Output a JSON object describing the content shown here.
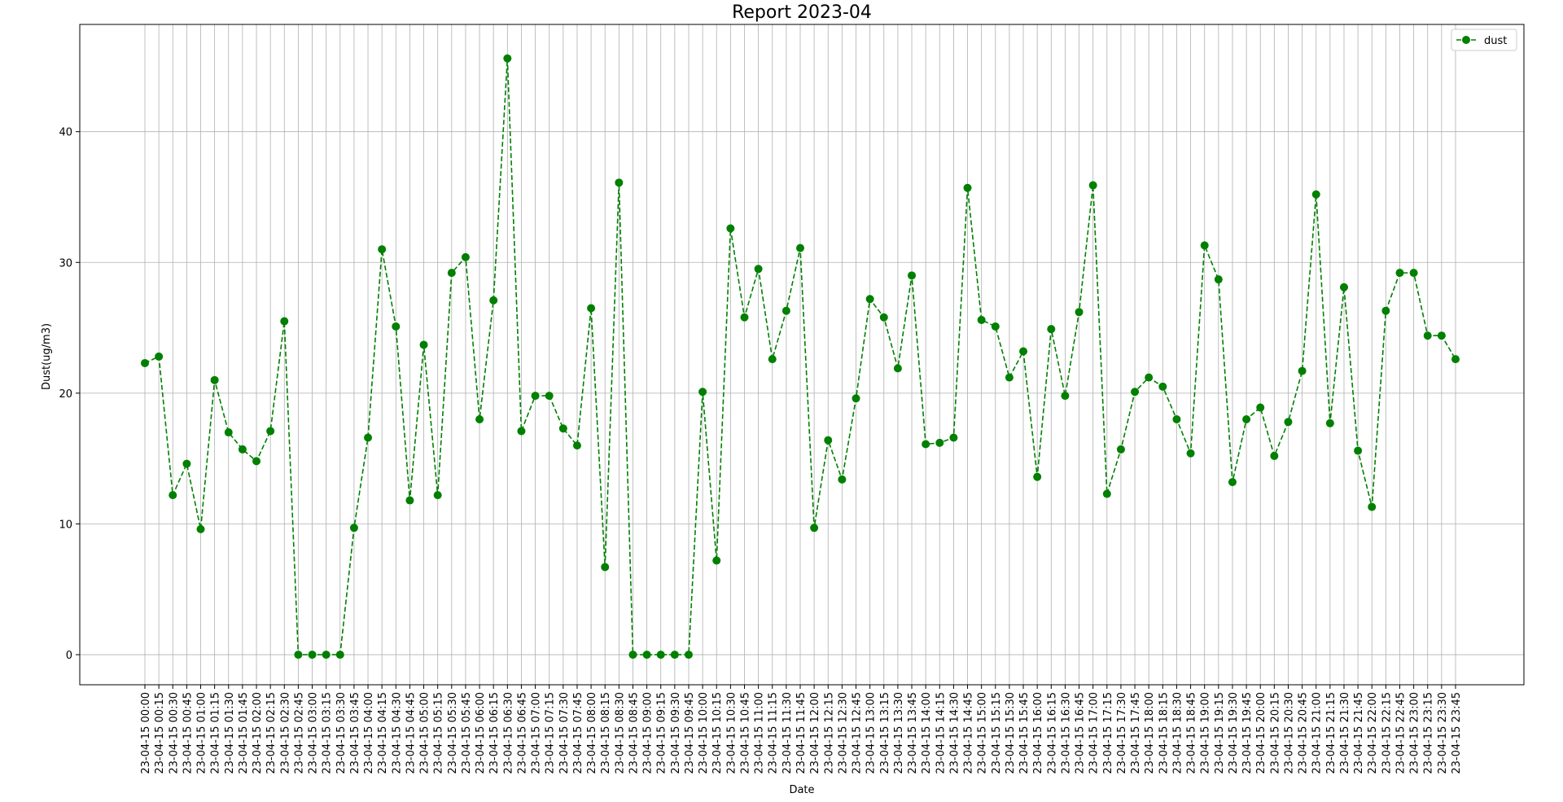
{
  "chart_data": {
    "type": "line",
    "title": "Report 2023-04",
    "xlabel": "Date",
    "ylabel": "Dust(ug/m3)",
    "ylim": [
      -2.3,
      48.2
    ],
    "yticks": [
      0,
      10,
      20,
      30,
      40
    ],
    "grid": true,
    "legend_position": "top-right",
    "series_color": "#008000",
    "line_style": "dashed",
    "marker": "circle",
    "x": [
      "23-04-15 00:00",
      "23-04-15 00:15",
      "23-04-15 00:30",
      "23-04-15 00:45",
      "23-04-15 01:00",
      "23-04-15 01:15",
      "23-04-15 01:30",
      "23-04-15 01:45",
      "23-04-15 02:00",
      "23-04-15 02:15",
      "23-04-15 02:30",
      "23-04-15 02:45",
      "23-04-15 03:00",
      "23-04-15 03:15",
      "23-04-15 03:30",
      "23-04-15 03:45",
      "23-04-15 04:00",
      "23-04-15 04:15",
      "23-04-15 04:30",
      "23-04-15 04:45",
      "23-04-15 05:00",
      "23-04-15 05:15",
      "23-04-15 05:30",
      "23-04-15 05:45",
      "23-04-15 06:00",
      "23-04-15 06:15",
      "23-04-15 06:30",
      "23-04-15 06:45",
      "23-04-15 07:00",
      "23-04-15 07:15",
      "23-04-15 07:30",
      "23-04-15 07:45",
      "23-04-15 08:00",
      "23-04-15 08:15",
      "23-04-15 08:30",
      "23-04-15 08:45",
      "23-04-15 09:00",
      "23-04-15 09:15",
      "23-04-15 09:30",
      "23-04-15 09:45",
      "23-04-15 10:00",
      "23-04-15 10:15",
      "23-04-15 10:30",
      "23-04-15 10:45",
      "23-04-15 11:00",
      "23-04-15 11:15",
      "23-04-15 11:30",
      "23-04-15 11:45",
      "23-04-15 12:00",
      "23-04-15 12:15",
      "23-04-15 12:30",
      "23-04-15 12:45",
      "23-04-15 13:00",
      "23-04-15 13:15",
      "23-04-15 13:30",
      "23-04-15 13:45",
      "23-04-15 14:00",
      "23-04-15 14:15",
      "23-04-15 14:30",
      "23-04-15 14:45",
      "23-04-15 15:00",
      "23-04-15 15:15",
      "23-04-15 15:30",
      "23-04-15 15:45",
      "23-04-15 16:00",
      "23-04-15 16:15",
      "23-04-15 16:30",
      "23-04-15 16:45",
      "23-04-15 17:00",
      "23-04-15 17:15",
      "23-04-15 17:30",
      "23-04-15 17:45",
      "23-04-15 18:00",
      "23-04-15 18:15",
      "23-04-15 18:30",
      "23-04-15 18:45",
      "23-04-15 19:00",
      "23-04-15 19:15",
      "23-04-15 19:30",
      "23-04-15 19:45",
      "23-04-15 20:00",
      "23-04-15 20:15",
      "23-04-15 20:30",
      "23-04-15 20:45",
      "23-04-15 21:00",
      "23-04-15 21:15",
      "23-04-15 21:30",
      "23-04-15 21:45",
      "23-04-15 22:00",
      "23-04-15 22:15",
      "23-04-15 22:45",
      "23-04-15 23:00",
      "23-04-15 23:15",
      "23-04-15 23:30",
      "23-04-15 23:45"
    ],
    "series": [
      {
        "name": "dust",
        "values": [
          22.3,
          22.8,
          12.2,
          14.6,
          9.6,
          21.0,
          17.0,
          15.7,
          14.8,
          17.1,
          25.5,
          0,
          0,
          0,
          0,
          9.7,
          16.6,
          31.0,
          25.1,
          11.8,
          23.7,
          12.2,
          29.2,
          30.4,
          18.0,
          27.1,
          45.6,
          17.1,
          19.8,
          19.8,
          17.3,
          16.0,
          26.5,
          6.7,
          36.1,
          0,
          0,
          0,
          0,
          0,
          20.1,
          7.2,
          32.6,
          25.8,
          29.5,
          22.6,
          26.3,
          31.1,
          9.7,
          16.4,
          13.4,
          19.6,
          27.2,
          25.8,
          21.9,
          29.0,
          16.1,
          16.2,
          16.6,
          35.7,
          25.6,
          25.1,
          21.2,
          23.2,
          13.6,
          24.9,
          19.8,
          26.2,
          35.9,
          12.3,
          15.7,
          20.1,
          21.2,
          20.5,
          18.0,
          15.4,
          31.3,
          28.7,
          13.2,
          18.0,
          18.9,
          15.2,
          17.8,
          21.7,
          35.2,
          17.7,
          28.1,
          15.6,
          11.3,
          26.3,
          29.2,
          29.2,
          24.4,
          24.4,
          22.6
        ]
      }
    ]
  }
}
